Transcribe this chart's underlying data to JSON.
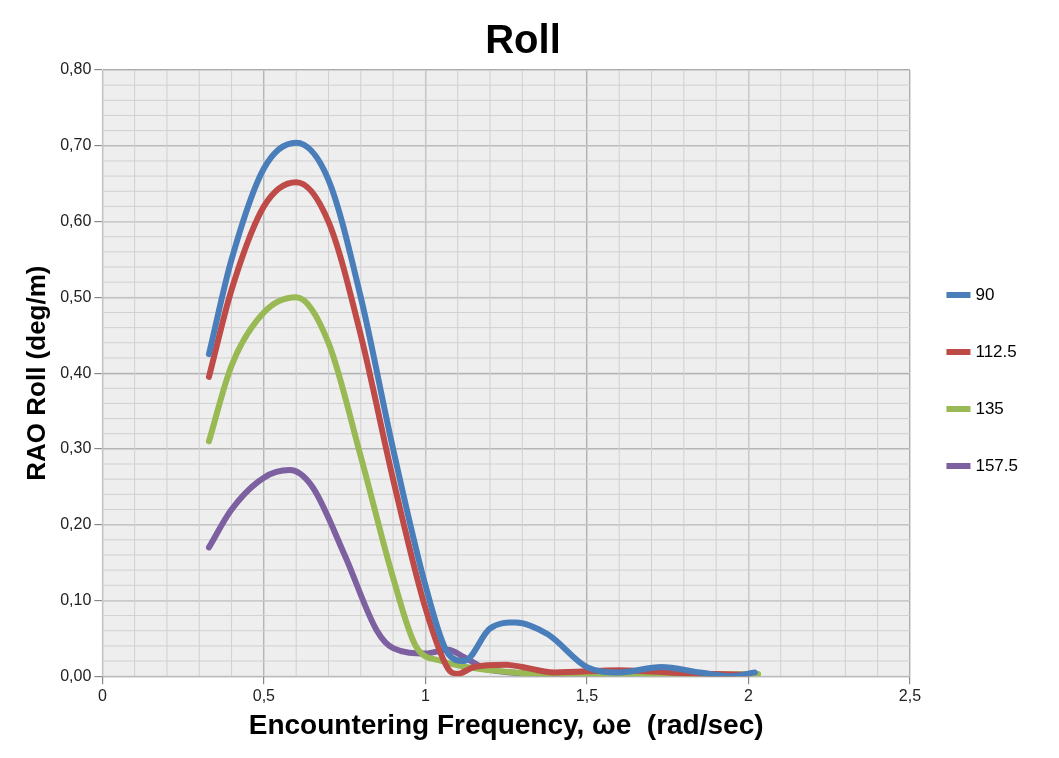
{
  "chart_data": {
    "type": "line",
    "title": "Roll",
    "xlabel": "Encountering Frequency, ωe  (rad/sec)",
    "ylabel": "RAO Roll (deg/m)",
    "xlim": [
      0,
      2.5
    ],
    "xticks": [
      0,
      {
        "value": 0.5,
        "label": "0,5"
      },
      1,
      {
        "value": 1.5,
        "label": "1,5"
      },
      2,
      {
        "value": 2.5,
        "label": "2,5"
      }
    ],
    "ylim": [
      0,
      0.8
    ],
    "yticks": [
      {
        "value": 0,
        "label": "0,00"
      },
      {
        "value": 0.1,
        "label": "0,10"
      },
      {
        "value": 0.2,
        "label": "0,20"
      },
      {
        "value": 0.3,
        "label": "0,30"
      },
      {
        "value": 0.4,
        "label": "0,40"
      },
      {
        "value": 0.5,
        "label": "0,50"
      },
      {
        "value": 0.6,
        "label": "0,60"
      },
      {
        "value": 0.7,
        "label": "0,70"
      },
      {
        "value": 0.8,
        "label": "0,80"
      }
    ],
    "grid": true,
    "legend": "right",
    "marker": "none",
    "line_style": "solid",
    "series": [
      {
        "name": "90",
        "color": "#4a7ebb",
        "x": [
          0.33,
          0.4,
          0.5,
          0.6,
          0.7,
          0.8,
          0.9,
          1.0,
          1.07,
          1.12,
          1.2,
          1.28,
          1.38,
          1.5,
          1.6,
          1.73,
          1.85,
          1.95,
          2.02
        ],
        "values": [
          0.425,
          0.55,
          0.67,
          0.704,
          0.655,
          0.5,
          0.3,
          0.12,
          0.03,
          0.02,
          0.063,
          0.071,
          0.055,
          0.012,
          0.005,
          0.012,
          0.005,
          0,
          0.005
        ]
      },
      {
        "name": "112.5",
        "color": "#be4b48",
        "x": [
          0.33,
          0.4,
          0.5,
          0.6,
          0.7,
          0.8,
          0.9,
          1.0,
          1.07,
          1.1,
          1.15,
          1.25,
          1.4,
          1.6,
          1.8,
          2.0
        ],
        "values": [
          0.395,
          0.51,
          0.62,
          0.652,
          0.6,
          0.45,
          0.26,
          0.09,
          0.01,
          0.003,
          0.012,
          0.015,
          0.005,
          0.008,
          0.004,
          0.002
        ]
      },
      {
        "name": "135",
        "color": "#98b954",
        "x": [
          0.33,
          0.4,
          0.5,
          0.6,
          0.7,
          0.8,
          0.9,
          0.97,
          1.05,
          1.2,
          1.5,
          1.8,
          2.03
        ],
        "values": [
          0.31,
          0.41,
          0.48,
          0.5,
          0.44,
          0.29,
          0.13,
          0.04,
          0.02,
          0.008,
          0.002,
          0.002,
          0.003
        ]
      },
      {
        "name": "157.5",
        "color": "#7d60a0",
        "x": [
          0.33,
          0.4,
          0.5,
          0.58,
          0.65,
          0.75,
          0.85,
          0.9,
          1.0,
          1.07,
          1.12,
          1.2,
          1.4,
          1.6,
          1.8,
          1.95
        ],
        "values": [
          0.17,
          0.22,
          0.262,
          0.272,
          0.25,
          0.16,
          0.06,
          0.037,
          0.03,
          0.035,
          0.025,
          0.008,
          0.003,
          0.004,
          0.004,
          0.001
        ]
      }
    ]
  }
}
